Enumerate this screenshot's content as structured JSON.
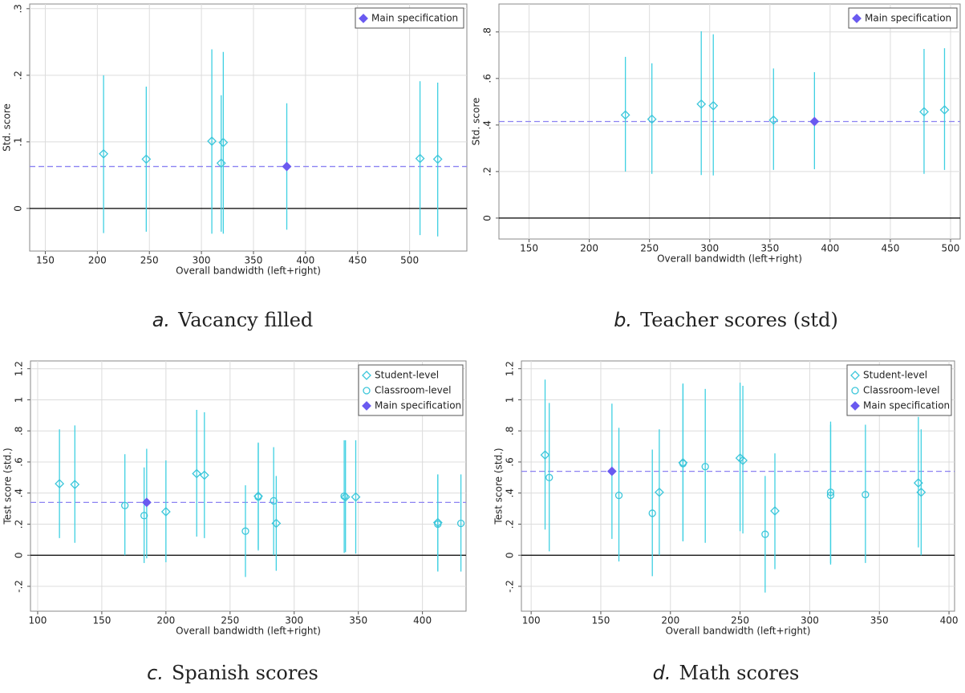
{
  "chart_data": [
    {
      "type": "scatter",
      "panel": "a.",
      "caption": "Vacancy filled",
      "x_label": "Overall bandwidth (left+right)",
      "y_label": "Std. score",
      "xlim": [
        135,
        555
      ],
      "ylim": [
        -0.064,
        0.307
      ],
      "xticks": [
        150,
        200,
        250,
        300,
        350,
        400,
        450,
        500
      ],
      "yticks": [
        0,
        {
          "value": 0.1,
          "label": ".1"
        },
        {
          "value": 0.2,
          "label": ".2"
        },
        {
          "value": 0.3,
          "label": ".3"
        }
      ],
      "grid": true,
      "legend": "top-right",
      "ref_line": 0.063,
      "ref_color": "#8c82f2",
      "series": [
        {
          "marker": "diamond",
          "filled": false,
          "color": "#3cc6da",
          "x": [
            206,
            247,
            310,
            319,
            321,
            510,
            527
          ],
          "values": [
            0.082,
            0.074,
            0.101,
            0.068,
            0.099,
            0.075,
            0.074
          ],
          "lower": [
            -0.037,
            -0.035,
            -0.038,
            -0.035,
            -0.038,
            -0.04,
            -0.042
          ],
          "upper": [
            0.2,
            0.183,
            0.239,
            0.17,
            0.235,
            0.191,
            0.189
          ]
        },
        {
          "name": "Main specification",
          "marker": "diamond",
          "filled": true,
          "color": "#6a5af0",
          "x": [
            382
          ],
          "values": [
            0.063
          ],
          "lower": [
            -0.032
          ],
          "upper": [
            0.158
          ]
        }
      ]
    },
    {
      "type": "scatter",
      "panel": "b.",
      "caption": "Teacher scores (std)",
      "x_label": "Overall bandwidth (left+right)",
      "y_label": "Std. score",
      "xlim": [
        125,
        508
      ],
      "ylim": [
        -0.09,
        0.92
      ],
      "xticks": [
        150,
        200,
        250,
        300,
        350,
        400,
        450,
        500
      ],
      "yticks": [
        0,
        {
          "value": 0.2,
          "label": ".2"
        },
        {
          "value": 0.4,
          "label": ".4"
        },
        {
          "value": 0.6,
          "label": ".6"
        },
        {
          "value": 0.8,
          "label": ".8"
        }
      ],
      "grid": true,
      "legend": "top-right",
      "ref_line": 0.415,
      "ref_color": "#8c82f2",
      "series": [
        {
          "marker": "diamond",
          "filled": false,
          "color": "#3cc6da",
          "x": [
            230,
            252,
            293,
            303,
            353,
            478,
            495
          ],
          "values": [
            0.443,
            0.425,
            0.49,
            0.483,
            0.421,
            0.457,
            0.465
          ],
          "lower": [
            0.2,
            0.19,
            0.185,
            0.183,
            0.207,
            0.19,
            0.207
          ],
          "upper": [
            0.693,
            0.665,
            0.803,
            0.79,
            0.643,
            0.727,
            0.73
          ]
        },
        {
          "name": "Main specification",
          "marker": "diamond",
          "filled": true,
          "color": "#6a5af0",
          "x": [
            387
          ],
          "values": [
            0.415
          ],
          "lower": [
            0.21
          ],
          "upper": [
            0.627
          ]
        }
      ]
    },
    {
      "type": "scatter",
      "panel": "c.",
      "caption": "Spanish scores",
      "x_label": "Overall bandwidth (left+right)",
      "y_label": "Test score (std.)",
      "xlim": [
        94.4,
        434
      ],
      "ylim": [
        -0.36,
        1.25
      ],
      "xticks": [
        100,
        150,
        200,
        250,
        300,
        350,
        400
      ],
      "yticks": [
        {
          "value": -0.2,
          "label": "-.2"
        },
        0,
        {
          "value": 0.2,
          "label": ".2"
        },
        {
          "value": 0.4,
          "label": ".4"
        },
        {
          "value": 0.6,
          "label": ".6"
        },
        {
          "value": 0.8,
          "label": ".8"
        },
        1,
        {
          "value": 1.2,
          "label": "1.2"
        }
      ],
      "grid": true,
      "legend": "top-right",
      "ref_line": 0.34,
      "ref_color": "#8c82f2",
      "series": [
        {
          "name": "Student-level",
          "marker": "diamond",
          "filled": false,
          "color": "#3cc6da",
          "x": [
            117,
            129,
            200,
            224,
            230,
            272,
            286,
            340,
            348,
            412
          ],
          "values": [
            0.46,
            0.455,
            0.28,
            0.525,
            0.515,
            0.38,
            0.205,
            0.375,
            0.375,
            0.21
          ],
          "lower": [
            0.11,
            0.08,
            -0.045,
            0.12,
            0.11,
            0.03,
            -0.1,
            0.02,
            0.01,
            -0.1
          ],
          "upper": [
            0.81,
            0.835,
            0.61,
            0.935,
            0.92,
            0.725,
            0.51,
            0.74,
            0.74,
            0.52
          ]
        },
        {
          "name": "Classroom-level",
          "marker": "circle",
          "filled": false,
          "color": "#3cc6da",
          "x": [
            168,
            183,
            262,
            272,
            284,
            339,
            412,
            430
          ],
          "values": [
            0.32,
            0.255,
            0.155,
            0.375,
            0.35,
            0.38,
            0.2,
            0.205
          ],
          "lower": [
            0.0,
            -0.05,
            -0.14,
            0.04,
            0.0,
            0.015,
            -0.105,
            -0.105
          ],
          "upper": [
            0.65,
            0.565,
            0.45,
            0.72,
            0.695,
            0.74,
            0.52,
            0.52
          ]
        },
        {
          "name": "Main specification",
          "marker": "diamond",
          "filled": true,
          "color": "#6a5af0",
          "x": [
            185
          ],
          "values": [
            0.34
          ],
          "lower": [
            -0.02
          ],
          "upper": [
            0.685
          ]
        }
      ]
    },
    {
      "type": "scatter",
      "panel": "d.",
      "caption": "Math scores",
      "x_label": "Overall bandwidth (left+right)",
      "y_label": "Test score (std.)",
      "xlim": [
        93,
        404
      ],
      "ylim": [
        -0.36,
        1.25
      ],
      "xticks": [
        100,
        150,
        200,
        250,
        300,
        350,
        400
      ],
      "yticks": [
        {
          "value": -0.2,
          "label": "-.2"
        },
        0,
        {
          "value": 0.2,
          "label": ".2"
        },
        {
          "value": 0.4,
          "label": ".4"
        },
        {
          "value": 0.6,
          "label": ".6"
        },
        {
          "value": 0.8,
          "label": ".8"
        },
        1,
        {
          "value": 1.2,
          "label": "1.2"
        }
      ],
      "grid": true,
      "legend": "top-right",
      "ref_line": 0.54,
      "ref_color": "#8c82f2",
      "series": [
        {
          "name": "Student-level",
          "marker": "diamond",
          "filled": false,
          "color": "#3cc6da",
          "x": [
            110,
            192,
            209,
            250,
            252,
            275,
            378,
            380
          ],
          "values": [
            0.645,
            0.405,
            0.595,
            0.625,
            0.61,
            0.285,
            0.465,
            0.405
          ],
          "lower": [
            0.165,
            0.0,
            0.09,
            0.155,
            0.14,
            -0.09,
            0.05,
            0.0
          ],
          "upper": [
            1.13,
            0.81,
            1.105,
            1.11,
            1.09,
            0.655,
            0.89,
            0.81
          ]
        },
        {
          "name": "Classroom-level",
          "marker": "circle",
          "filled": false,
          "color": "#3cc6da",
          "x": [
            113,
            163,
            187,
            209,
            225,
            268,
            315,
            315,
            340
          ],
          "values": [
            0.5,
            0.385,
            0.27,
            0.59,
            0.57,
            0.135,
            0.405,
            0.385,
            0.39
          ],
          "lower": [
            0.025,
            -0.04,
            -0.135,
            0.09,
            0.08,
            -0.24,
            -0.05,
            -0.06,
            -0.05
          ],
          "upper": [
            0.98,
            0.82,
            0.68,
            1.1,
            1.07,
            0.51,
            0.86,
            0.84,
            0.84
          ]
        },
        {
          "name": "Main specification",
          "marker": "diamond",
          "filled": true,
          "color": "#6a5af0",
          "x": [
            158
          ],
          "values": [
            0.54
          ],
          "lower": [
            0.105
          ],
          "upper": [
            0.975
          ]
        }
      ]
    }
  ]
}
